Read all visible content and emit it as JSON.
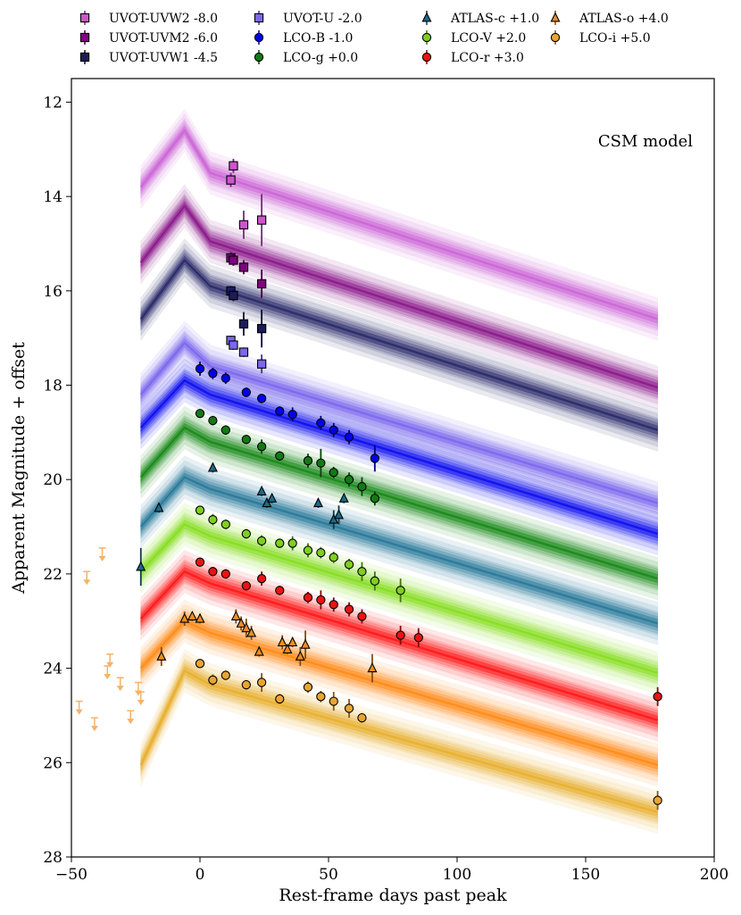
{
  "chart_data": {
    "type": "scatter",
    "title": "",
    "xlabel": "Rest-frame days past peak",
    "ylabel": "Apparent Magnitude + offset",
    "xlim": [
      -50,
      200
    ],
    "ylim": [
      28,
      11.5
    ],
    "y_inverted": true,
    "xticks": [
      -50,
      0,
      50,
      100,
      150,
      200
    ],
    "xtick_labels": [
      "−50",
      "0",
      "50",
      "100",
      "150",
      "200"
    ],
    "yticks": [
      12,
      14,
      16,
      18,
      20,
      22,
      24,
      26,
      28
    ],
    "ytick_labels": [
      "12",
      "14",
      "16",
      "18",
      "20",
      "22",
      "24",
      "26",
      "28"
    ],
    "annotation": "CSM model",
    "legend_position": "top, above plot, 4 columns",
    "model_key_times": [
      -23,
      -6,
      4,
      178
    ],
    "series": [
      {
        "name": "UVOT-UVW2 -8.0",
        "label": "UVOT-UVW2 -8.0",
        "marker": "square",
        "color": "#cc55cc",
        "band": "#cc66d8",
        "model": [
          13.8,
          12.6,
          13.5,
          16.6
        ],
        "points": [
          [
            12,
            13.65,
            0.15
          ],
          [
            13,
            13.35,
            0.15
          ],
          [
            17,
            14.6,
            0.3
          ],
          [
            24,
            14.5,
            0.55
          ]
        ]
      },
      {
        "name": "UVOT-UVM2 -6.0",
        "label": "UVOT-UVM2 -6.0",
        "marker": "square",
        "color": "#800080",
        "band": "#8c1a8c",
        "model": [
          15.4,
          14.2,
          14.95,
          18.05
        ],
        "points": [
          [
            12,
            15.3,
            0.12
          ],
          [
            13,
            15.35,
            0.12
          ],
          [
            17,
            15.5,
            0.15
          ],
          [
            24,
            15.85,
            0.3
          ]
        ]
      },
      {
        "name": "UVOT-UVW1 -4.5",
        "label": "UVOT-UVW1 -4.5",
        "marker": "square",
        "color": "#1c1c5c",
        "band": "#2a2a6a",
        "model": [
          16.6,
          15.35,
          15.9,
          18.95
        ],
        "points": [
          [
            12,
            16.0,
            0.1
          ],
          [
            13,
            16.1,
            0.12
          ],
          [
            17,
            16.7,
            0.25
          ],
          [
            24,
            16.8,
            0.4
          ]
        ]
      },
      {
        "name": "UVOT-U -2.0",
        "label": "UVOT-U -2.0",
        "marker": "square",
        "color": "#7b68ee",
        "band": "#7b68ee",
        "model": [
          18.2,
          17.1,
          17.6,
          20.5
        ],
        "points": [
          [
            12,
            17.05,
            0.1
          ],
          [
            13,
            17.15,
            0.1
          ],
          [
            17,
            17.3,
            0.1
          ],
          [
            24,
            17.55,
            0.2
          ]
        ]
      },
      {
        "name": "LCO-B -1.0",
        "label": "LCO-B -1.0",
        "marker": "circle",
        "color": "#0000ee",
        "band": "#1010f0",
        "model": [
          18.9,
          17.9,
          18.2,
          21.15
        ],
        "points": [
          [
            0,
            17.65,
            0.15
          ],
          [
            5,
            17.75,
            0.12
          ],
          [
            10,
            17.85,
            0.12
          ],
          [
            18,
            18.15,
            0.1
          ],
          [
            24,
            18.28,
            0.1
          ],
          [
            31,
            18.55,
            0.1
          ],
          [
            36,
            18.62,
            0.15
          ],
          [
            47,
            18.8,
            0.15
          ],
          [
            52,
            18.95,
            0.15
          ],
          [
            58,
            19.1,
            0.15
          ],
          [
            68,
            19.55,
            0.28
          ]
        ]
      },
      {
        "name": "LCO-g +0.0",
        "label": "LCO-g +0.0",
        "marker": "circle",
        "color": "#127a12",
        "band": "#1a8a1a",
        "model": [
          19.95,
          18.9,
          19.2,
          22.1
        ],
        "points": [
          [
            0,
            18.6,
            0.08
          ],
          [
            5,
            18.75,
            0.1
          ],
          [
            10,
            18.95,
            0.1
          ],
          [
            18,
            19.15,
            0.1
          ],
          [
            24,
            19.3,
            0.15
          ],
          [
            31,
            19.5,
            0.1
          ],
          [
            42,
            19.6,
            0.15
          ],
          [
            47,
            19.65,
            0.3
          ],
          [
            52,
            19.85,
            0.12
          ],
          [
            58,
            20.0,
            0.15
          ],
          [
            63,
            20.15,
            0.2
          ],
          [
            68,
            20.4,
            0.15
          ]
        ]
      },
      {
        "name": "ATLAS-c +1.0",
        "label": "ATLAS-c +1.0",
        "marker": "triangle",
        "color": "#1a6a8a",
        "band": "#2a7a9a",
        "model": [
          21.0,
          19.95,
          20.2,
          23.05
        ],
        "points": [
          [
            -23,
            21.85,
            0.4
          ],
          [
            -16,
            20.6,
            0.1
          ],
          [
            5,
            19.75,
            0.1
          ],
          [
            24,
            20.25,
            0.1
          ],
          [
            26,
            20.5,
            0.1
          ],
          [
            28,
            20.4,
            0.1
          ],
          [
            46,
            20.5,
            0.1
          ],
          [
            52,
            20.85,
            0.2
          ],
          [
            54,
            20.75,
            0.2
          ],
          [
            56,
            20.4,
            0.1
          ]
        ]
      },
      {
        "name": "LCO-V +2.0",
        "label": "LCO-V +2.0",
        "marker": "circle",
        "color": "#7fcf1f",
        "band": "#88dd22",
        "model": [
          21.95,
          20.95,
          21.2,
          24.1
        ],
        "points": [
          [
            0,
            20.65,
            0.08
          ],
          [
            5,
            20.85,
            0.12
          ],
          [
            10,
            20.95,
            0.1
          ],
          [
            18,
            21.15,
            0.1
          ],
          [
            24,
            21.3,
            0.12
          ],
          [
            31,
            21.35,
            0.1
          ],
          [
            36,
            21.35,
            0.15
          ],
          [
            42,
            21.5,
            0.15
          ],
          [
            47,
            21.55,
            0.12
          ],
          [
            52,
            21.65,
            0.12
          ],
          [
            58,
            21.8,
            0.12
          ],
          [
            63,
            21.95,
            0.2
          ],
          [
            68,
            22.15,
            0.2
          ],
          [
            78,
            22.35,
            0.25
          ]
        ]
      },
      {
        "name": "LCO-r +3.0",
        "label": "LCO-r +3.0",
        "marker": "circle",
        "color": "#ee1111",
        "band": "#ff1a1a",
        "model": [
          22.95,
          21.95,
          22.2,
          25.1
        ],
        "points": [
          [
            0,
            21.75,
            0.08
          ],
          [
            5,
            21.95,
            0.1
          ],
          [
            10,
            22.0,
            0.1
          ],
          [
            18,
            22.25,
            0.1
          ],
          [
            24,
            22.1,
            0.15
          ],
          [
            31,
            22.35,
            0.1
          ],
          [
            42,
            22.5,
            0.12
          ],
          [
            47,
            22.55,
            0.2
          ],
          [
            52,
            22.65,
            0.15
          ],
          [
            58,
            22.75,
            0.15
          ],
          [
            63,
            22.9,
            0.15
          ],
          [
            78,
            23.3,
            0.2
          ],
          [
            85,
            23.35,
            0.2
          ],
          [
            178,
            24.6,
            0.2
          ]
        ]
      },
      {
        "name": "ATLAS-o +4.0",
        "label": "ATLAS-o +4.0",
        "marker": "triangle",
        "color": "#f08c20",
        "band": "#ff8c1a",
        "model": [
          24.0,
          23.0,
          23.25,
          26.05
        ],
        "points": [
          [
            -15,
            23.75,
            0.2
          ],
          [
            -6,
            22.95,
            0.15
          ],
          [
            -3,
            22.9,
            0.1
          ],
          [
            0,
            22.95,
            0.1
          ],
          [
            14,
            22.9,
            0.15
          ],
          [
            16,
            23.05,
            0.15
          ],
          [
            18,
            23.15,
            0.2
          ],
          [
            20,
            23.25,
            0.15
          ],
          [
            23,
            23.65,
            0.1
          ],
          [
            32,
            23.45,
            0.15
          ],
          [
            34,
            23.6,
            0.1
          ],
          [
            36,
            23.45,
            0.1
          ],
          [
            39,
            23.75,
            0.2
          ],
          [
            41,
            23.5,
            0.3
          ],
          [
            67,
            24.0,
            0.3
          ]
        ]
      },
      {
        "name": "LCO-i +5.0",
        "label": "LCO-i +5.0",
        "marker": "circle",
        "color": "#e8a533",
        "band": "#e8b030",
        "model": [
          26.05,
          24.05,
          24.35,
          27.05
        ],
        "points": [
          [
            0,
            23.9,
            0.08
          ],
          [
            5,
            24.25,
            0.12
          ],
          [
            10,
            24.15,
            0.1
          ],
          [
            18,
            24.35,
            0.1
          ],
          [
            24,
            24.3,
            0.2
          ],
          [
            31,
            24.65,
            0.1
          ],
          [
            42,
            24.4,
            0.12
          ],
          [
            47,
            24.6,
            0.12
          ],
          [
            52,
            24.7,
            0.2
          ],
          [
            58,
            24.85,
            0.2
          ],
          [
            63,
            25.05,
            0.1
          ],
          [
            178,
            26.8,
            0.2
          ]
        ]
      }
    ],
    "upper_limits": {
      "name": "ATLAS-o upper limits",
      "color": "#f4b36a",
      "points": [
        [
          -47,
          24.7
        ],
        [
          -44,
          21.95
        ],
        [
          -41,
          25.05
        ],
        [
          -38,
          21.45
        ],
        [
          -36,
          23.95
        ],
        [
          -35,
          23.7
        ],
        [
          -31,
          24.2
        ],
        [
          -27,
          24.9
        ],
        [
          -24,
          24.3
        ],
        [
          -23,
          24.5
        ]
      ]
    }
  }
}
